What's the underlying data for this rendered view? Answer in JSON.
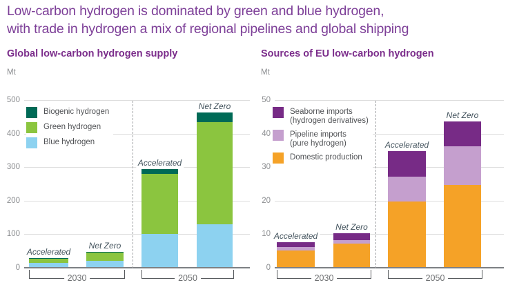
{
  "page_title": {
    "line1": "Low-carbon hydrogen is dominated by green and blue hydrogen,",
    "line2": "with trade in hydrogen a mix of regional pipelines and global shipping"
  },
  "colors": {
    "title_purple": "#7D3F98",
    "biogenic_green": "#006A56",
    "green": "#8BC53F",
    "blue": "#8DD2F0",
    "seaborne_purple": "#772B86",
    "pipeline_lilac": "#C59FCE",
    "domestic_orange": "#F5A227",
    "gridline": "#DDDDDD",
    "axis": "#7D8083"
  },
  "chart_data": [
    {
      "type": "bar",
      "stacked": true,
      "title": "Global low-carbon hydrogen supply",
      "ylabel": "Mt",
      "ylim": [
        0,
        500
      ],
      "y_ticks": [
        0,
        100,
        200,
        300,
        400,
        500
      ],
      "grid": true,
      "group_labels": [
        "2030",
        "2050"
      ],
      "categories": [
        "2030 Accelerated",
        "2030 Net Zero",
        "2050 Accelerated",
        "2050 Net Zero"
      ],
      "scenario_labels": [
        "Accelerated",
        "Net Zero",
        "Accelerated",
        "Net Zero"
      ],
      "series": [
        {
          "name": "Blue hydrogen",
          "color": "#8DD2F0",
          "values": [
            12,
            18,
            98,
            127
          ]
        },
        {
          "name": "Green hydrogen",
          "color": "#8BC53F",
          "values": [
            13,
            26,
            180,
            306
          ]
        },
        {
          "name": "Biogenic hydrogen",
          "color": "#006A56",
          "values": [
            2,
            2,
            14,
            27
          ]
        }
      ],
      "totals": [
        27,
        46,
        292,
        460
      ],
      "legend_position": "top-left-inside",
      "legend": [
        {
          "lines": [
            "Biogenic hydrogen"
          ],
          "color": "#006A56"
        },
        {
          "lines": [
            "Green hydrogen"
          ],
          "color": "#8BC53F"
        },
        {
          "lines": [
            "Blue hydrogen"
          ],
          "color": "#8DD2F0"
        }
      ]
    },
    {
      "type": "bar",
      "stacked": true,
      "title": "Sources of EU low-carbon hydrogen",
      "ylabel": "Mt",
      "ylim": [
        0,
        50
      ],
      "y_ticks": [
        0,
        10,
        20,
        30,
        40,
        50
      ],
      "grid": true,
      "group_labels": [
        "2030",
        "2050"
      ],
      "categories": [
        "2030 Accelerated",
        "2030 Net Zero",
        "2050 Accelerated",
        "2050 Net Zero"
      ],
      "scenario_labels": [
        "Accelerated",
        "Net Zero",
        "Accelerated",
        "Net Zero"
      ],
      "series": [
        {
          "name": "Domestic production",
          "color": "#F5A227",
          "values": [
            5,
            7,
            19.5,
            24.5
          ]
        },
        {
          "name": "Pipeline imports (pure hydrogen)",
          "color": "#C59FCE",
          "values": [
            1,
            1,
            7.5,
            11.5
          ]
        },
        {
          "name": "Seaborne imports (hydrogen derivatives)",
          "color": "#772B86",
          "values": [
            1.5,
            2,
            7.5,
            7.5
          ]
        }
      ],
      "totals": [
        7.5,
        10,
        34.5,
        43.5
      ],
      "legend_position": "top-left-inside",
      "legend": [
        {
          "lines": [
            "Seaborne imports",
            "(hydrogen derivatives)"
          ],
          "color": "#772B86"
        },
        {
          "lines": [
            "Pipeline imports",
            "(pure hydrogen)"
          ],
          "color": "#C59FCE"
        },
        {
          "lines": [
            "Domestic production"
          ],
          "color": "#F5A227"
        }
      ]
    }
  ]
}
